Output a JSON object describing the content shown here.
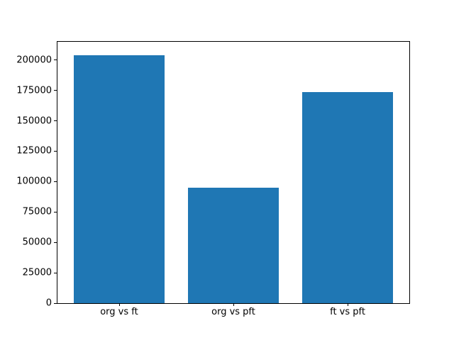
{
  "chart_data": {
    "type": "bar",
    "title": "",
    "xlabel": "",
    "ylabel": "",
    "categories": [
      "org vs ft",
      "org vs pft",
      "ft vs pft"
    ],
    "values": [
      204000,
      95000,
      173500
    ],
    "yticks": [
      0,
      25000,
      50000,
      75000,
      100000,
      125000,
      150000,
      175000,
      200000
    ],
    "ylim": [
      0,
      215000
    ],
    "xlim": [
      -0.54,
      2.54
    ],
    "bar_width_fraction": 0.8,
    "bar_color": "#1f77b4",
    "axes_color": "#000000",
    "background_color": "#ffffff",
    "grid": false,
    "legend": false
  }
}
